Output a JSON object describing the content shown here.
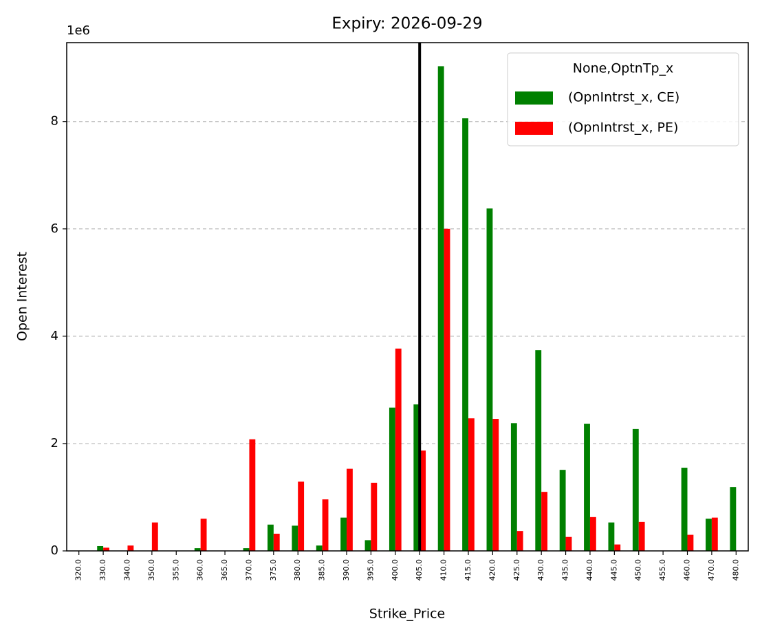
{
  "chart_data": {
    "type": "bar",
    "title": "Expiry: 2026-09-29",
    "x_label": "Strike_Price",
    "y_label": "Open Interest",
    "y_offset_label": "1e6",
    "categories": [
      "320.0",
      "330.0",
      "340.0",
      "350.0",
      "355.0",
      "360.0",
      "365.0",
      "370.0",
      "375.0",
      "380.0",
      "385.0",
      "390.0",
      "395.0",
      "400.0",
      "405.0",
      "410.0",
      "415.0",
      "420.0",
      "425.0",
      "430.0",
      "435.0",
      "440.0",
      "445.0",
      "450.0",
      "455.0",
      "460.0",
      "470.0",
      "480.0"
    ],
    "legend_title": "None,OptnTp_x",
    "legend_position": "upper right",
    "series": [
      {
        "name": "(OpnIntrst_x, CE)",
        "color": "#008000",
        "values": [
          0,
          90000,
          0,
          0,
          0,
          50000,
          0,
          50000,
          490000,
          470000,
          100000,
          620000,
          200000,
          2670000,
          2730000,
          9030000,
          8060000,
          6380000,
          2380000,
          3740000,
          1510000,
          2370000,
          530000,
          2270000,
          0,
          1550000,
          600000,
          1190000
        ]
      },
      {
        "name": "(OpnIntrst_x, PE)",
        "color": "#ff0000",
        "values": [
          0,
          60000,
          100000,
          530000,
          0,
          600000,
          0,
          2080000,
          320000,
          1290000,
          960000,
          1530000,
          1270000,
          3770000,
          1870000,
          6000000,
          2470000,
          2460000,
          370000,
          1100000,
          260000,
          630000,
          120000,
          540000,
          0,
          300000,
          620000,
          0
        ]
      }
    ],
    "ylim": [
      0,
      9470000
    ],
    "yticks": [
      {
        "value": 0,
        "label": "0"
      },
      {
        "value": 2000000,
        "label": "2"
      },
      {
        "value": 4000000,
        "label": "4"
      },
      {
        "value": 6000000,
        "label": "6"
      },
      {
        "value": 8000000,
        "label": "8"
      }
    ],
    "grid": true,
    "vline_at": "405.0"
  }
}
